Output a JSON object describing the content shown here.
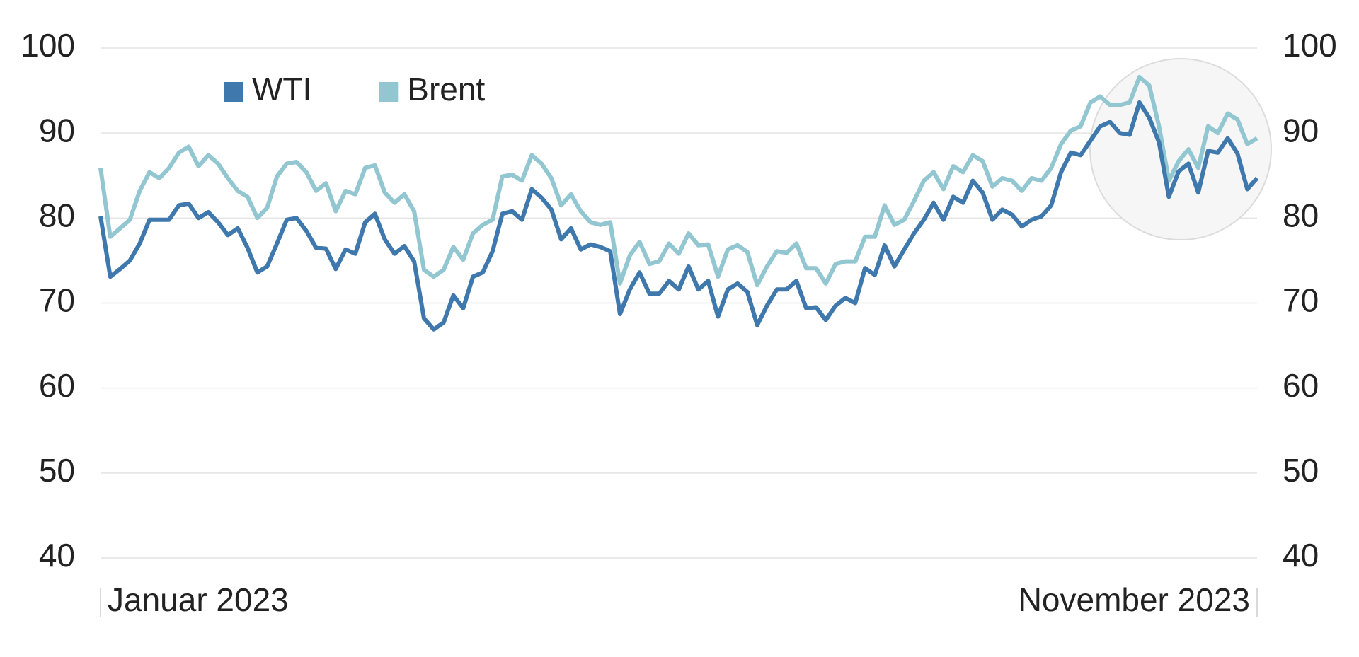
{
  "chart_data": {
    "type": "line",
    "categories": [
      "Januar 2023",
      null,
      null,
      null,
      null,
      null,
      null,
      null,
      null,
      null,
      null,
      null,
      null,
      null,
      null,
      null,
      null,
      null,
      null,
      null,
      null,
      null,
      null,
      null,
      null,
      null,
      null,
      null,
      null,
      null,
      null,
      null,
      null,
      null,
      null,
      null,
      null,
      null,
      null,
      null,
      null,
      null,
      null,
      null,
      null,
      null,
      null,
      null,
      null,
      null,
      null,
      null,
      null,
      null,
      null,
      null,
      null,
      null,
      null,
      null,
      null,
      null,
      null,
      null,
      null,
      null,
      null,
      null,
      null,
      null,
      null,
      null,
      null,
      null,
      null,
      null,
      null,
      null,
      null,
      null,
      null,
      null,
      null,
      null,
      null,
      null,
      null,
      null,
      null,
      null,
      null,
      null,
      null,
      null,
      null,
      null,
      null,
      null,
      null,
      null,
      null,
      null,
      null,
      null,
      null,
      null,
      null,
      null,
      null,
      null,
      null,
      null,
      null,
      null,
      null,
      null,
      null,
      null,
      "November 2023"
    ],
    "series": [
      {
        "name": "WTI",
        "color": "#3f78ad",
        "values": [
          80.2,
          73.1,
          74,
          75,
          77,
          79.8,
          79.8,
          79.8,
          81.5,
          81.7,
          80,
          80.7,
          79.5,
          78,
          78.8,
          76.5,
          73.6,
          74.3,
          77,
          79.8,
          80,
          78.5,
          76.5,
          76.4,
          74,
          76.3,
          75.8,
          79.5,
          80.5,
          77.5,
          75.8,
          76.7,
          74.9,
          68.2,
          66.9,
          67.7,
          70.9,
          69.4,
          73.1,
          73.6,
          76.1,
          80.5,
          80.8,
          79.8,
          83.4,
          82.4,
          81,
          77.5,
          78.8,
          76.3,
          76.9,
          76.6,
          76.1,
          68.7,
          71.6,
          73.6,
          71.1,
          71.1,
          72.6,
          71.6,
          74.3,
          71.6,
          72.6,
          68.4,
          71.6,
          72.3,
          71.3,
          67.4,
          69.7,
          71.6,
          71.6,
          72.6,
          69.4,
          69.5,
          68,
          69.7,
          70.6,
          70,
          74.1,
          73.3,
          76.8,
          74.3,
          76.3,
          78.2,
          79.8,
          81.8,
          79.8,
          82.5,
          81.8,
          84.4,
          83,
          79.8,
          81,
          80.4,
          79,
          79.8,
          80.2,
          81.5,
          85.4,
          87.7,
          87.4,
          89.1,
          90.8,
          91.3,
          90,
          89.8,
          93.6,
          91.8,
          88.9,
          82.5,
          85.5,
          86.4,
          83,
          87.9,
          87.7,
          89.4,
          87.6,
          83.4,
          84.7
        ]
      },
      {
        "name": "Brent",
        "color": "#92c6d1",
        "values": [
          85.9,
          77.8,
          78.8,
          79.8,
          83.2,
          85.4,
          84.7,
          85.9,
          87.7,
          88.4,
          86.1,
          87.4,
          86.4,
          84.7,
          83.2,
          82.5,
          80,
          81.2,
          84.9,
          86.4,
          86.6,
          85.4,
          83.2,
          84.1,
          80.8,
          83.2,
          82.8,
          85.9,
          86.2,
          83,
          81.8,
          82.8,
          80.8,
          73.9,
          73.1,
          73.9,
          76.6,
          75.1,
          78.2,
          79.2,
          79.8,
          84.9,
          85.1,
          84.4,
          87.4,
          86.4,
          84.7,
          81.5,
          82.8,
          80.8,
          79.5,
          79.2,
          79.5,
          72.3,
          75.6,
          77.2,
          74.6,
          74.9,
          77,
          75.8,
          78.2,
          76.8,
          76.9,
          73.1,
          76.3,
          76.8,
          76,
          72.1,
          74.3,
          76.1,
          75.9,
          77,
          74.1,
          74.1,
          72.3,
          74.6,
          74.9,
          74.9,
          77.8,
          77.8,
          81.5,
          79.2,
          79.8,
          82,
          84.4,
          85.4,
          83.4,
          86.1,
          85.4,
          87.4,
          86.7,
          83.7,
          84.7,
          84.4,
          83.2,
          84.7,
          84.4,
          85.9,
          88.7,
          90.3,
          90.8,
          93.6,
          94.3,
          93.3,
          93.3,
          93.6,
          96.6,
          95.6,
          90.8,
          84.4,
          86.7,
          88.1,
          85.9,
          90.8,
          90,
          92.3,
          91.6,
          88.7,
          89.4
        ]
      }
    ],
    "ylim": [
      40,
      100
    ],
    "yticks": [
      40,
      50,
      60,
      70,
      80,
      90,
      100
    ],
    "y2lim": [
      40,
      100
    ],
    "y2ticks": [
      40,
      50,
      60,
      70,
      80,
      90,
      100
    ],
    "grid": true,
    "legend": "upper left"
  }
}
